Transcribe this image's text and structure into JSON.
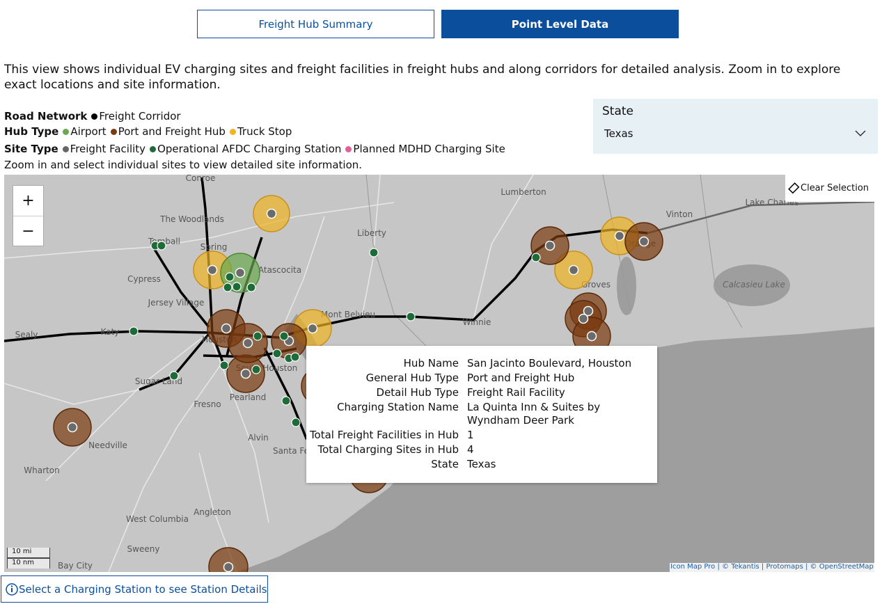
{
  "tabs": [
    "Freight Hub Summary",
    "Point Level Data"
  ],
  "description": "This view shows individual EV charging sites and freight facilities in freight hubs and along corridors for detailed analysis. Zoom in to explore exact locations and site information.",
  "legend": {
    "road": {
      "label": "Road Network",
      "items": [
        "Freight Corridor"
      ]
    },
    "hub": {
      "label": "Hub Type",
      "items": [
        "Airport",
        "Port and Freight Hub",
        "Truck Stop"
      ]
    },
    "site": {
      "label": "Site Type",
      "items": [
        "Freight Facility",
        "Operational AFDC Charging Station",
        "Planned MDHD Charging Site"
      ]
    }
  },
  "hint": "Zoom in and select individual sites to view detailed site information.",
  "filter": {
    "label": "State",
    "value": "Texas"
  },
  "map": {
    "zoom_in": "+",
    "zoom_out": "−",
    "clear": "Clear Selection",
    "places": [
      "Conroe",
      "The Woodlands",
      "Tomball",
      "Spring",
      "Atascocita",
      "Cypress",
      "Jersey Village",
      "Katy",
      "Sealy",
      "Houston",
      "Sugar Land",
      "South Houston",
      "Pearland",
      "Fresno",
      "Needville",
      "Alvin",
      "Santa Fe",
      "Wharton",
      "Angleton",
      "West Columbia",
      "Sweeny",
      "Bay City",
      "Liberty",
      "Mont Belvieu",
      "Winnie",
      "Lumberton",
      "Vinton",
      "Orange",
      "Groves",
      "Lake Charles",
      "Calcasieu Lake"
    ],
    "scale": [
      "10 mi",
      "10 nm"
    ],
    "attribution": "Icon Map Pro | © Tekantis | Protomaps | © OpenStreetMap"
  },
  "tooltip": {
    "rows": [
      [
        "Hub Name",
        "San Jacinto Boulevard, Houston"
      ],
      [
        "General Hub Type",
        "Port and Freight Hub"
      ],
      [
        "Detail Hub Type",
        "Freight Rail Facility"
      ],
      [
        "Charging Station Name",
        "La Quinta Inn & Suites by Wyndham Deer Park"
      ],
      [
        "Total Freight Facilities in Hub",
        "1"
      ],
      [
        "Total Charging Sites in Hub",
        "4"
      ],
      [
        "State",
        "Texas"
      ]
    ]
  },
  "footer_button": "Select a Charging Station to see Station Details"
}
